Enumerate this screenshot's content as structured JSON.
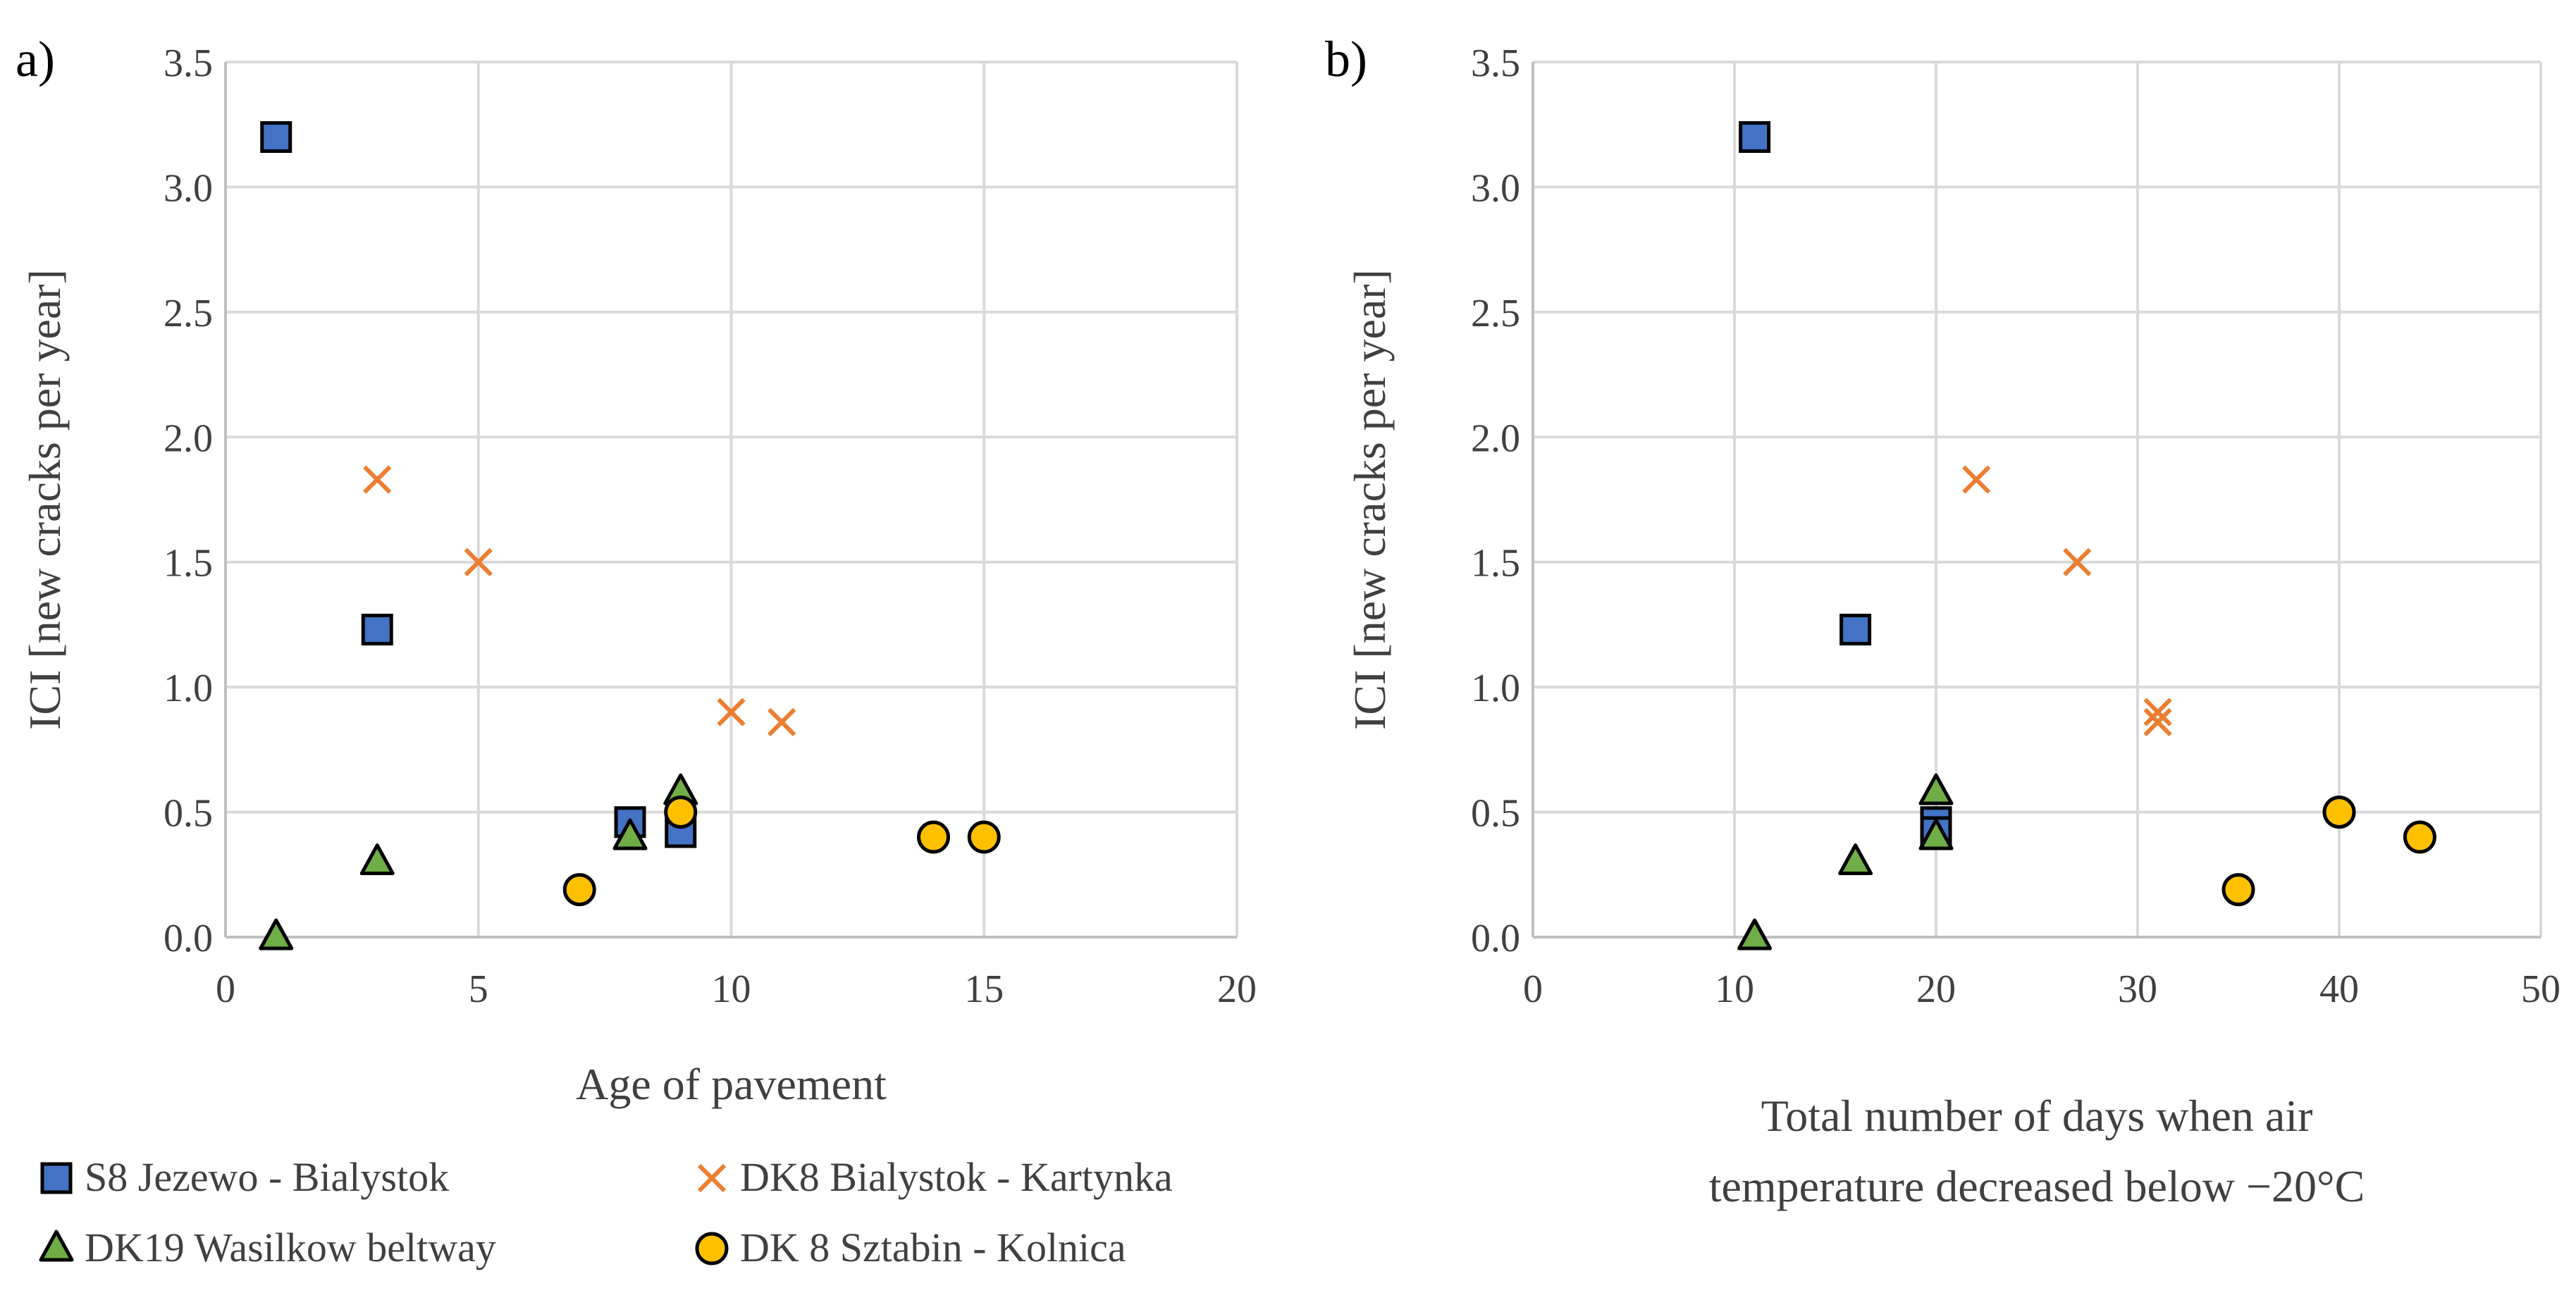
{
  "colors": {
    "s8": "#4472C4",
    "dk8_bk": "#ED7D31",
    "dk19": "#70AD47",
    "dk8_sk": "#FFC000",
    "edge": "#000000",
    "grid": "#d9d9d9"
  },
  "legend": {
    "items": [
      {
        "key": "s8",
        "label": "S8 Jezewo - Bialystok",
        "marker": "square"
      },
      {
        "key": "dk8_bk",
        "label": "DK8 Bialystok - Kartynka",
        "marker": "x"
      },
      {
        "key": "dk19",
        "label": "DK19 Wasilkow beltway",
        "marker": "triangle"
      },
      {
        "key": "dk8_sk",
        "label": "DK 8 Sztabin - Kolnica",
        "marker": "circle"
      }
    ]
  },
  "chart_data": [
    {
      "type": "scatter",
      "panel_label": "a)",
      "title": "",
      "xlabel": "Age of pavement",
      "ylabel": "ICI [new cracks per year]",
      "xlim": [
        0,
        20
      ],
      "ylim": [
        0,
        3.5
      ],
      "xticks": [
        "0",
        "5",
        "10",
        "15",
        "20"
      ],
      "yticks": [
        "0.0",
        "0.5",
        "1.0",
        "1.5",
        "2.0",
        "2.5",
        "3.0",
        "3.5"
      ],
      "grid": true,
      "series": [
        {
          "key": "s8",
          "name": "S8 Jezewo - Bialystok",
          "marker": "square",
          "points": [
            [
              1,
              3.2
            ],
            [
              3,
              1.23
            ],
            [
              8,
              0.46
            ],
            [
              9,
              0.42
            ]
          ]
        },
        {
          "key": "dk8_bk",
          "name": "DK8 Bialystok - Kartynka",
          "marker": "x",
          "points": [
            [
              3,
              1.83
            ],
            [
              5,
              1.5
            ],
            [
              10,
              0.9
            ],
            [
              11,
              0.86
            ]
          ]
        },
        {
          "key": "dk19",
          "name": "DK19 Wasilkow beltway",
          "marker": "triangle",
          "points": [
            [
              1,
              0.0
            ],
            [
              3,
              0.3
            ],
            [
              8,
              0.4
            ],
            [
              9,
              0.58
            ]
          ]
        },
        {
          "key": "dk8_sk",
          "name": "DK 8 Sztabin - Kolnica",
          "marker": "circle",
          "points": [
            [
              7,
              0.19
            ],
            [
              9,
              0.5
            ],
            [
              14,
              0.4
            ],
            [
              15,
              0.4
            ]
          ]
        }
      ]
    },
    {
      "type": "scatter",
      "panel_label": "b)",
      "title": "",
      "xlabel": [
        "Total number of days when air",
        "temperature decreased below −20°C"
      ],
      "ylabel": "ICI [new cracks per year]",
      "xlim": [
        0,
        50
      ],
      "ylim": [
        0,
        3.5
      ],
      "xticks": [
        "0",
        "10",
        "20",
        "30",
        "40",
        "50"
      ],
      "yticks": [
        "0.0",
        "0.5",
        "1.0",
        "1.5",
        "2.0",
        "2.5",
        "3.0",
        "3.5"
      ],
      "grid": true,
      "series": [
        {
          "key": "s8",
          "name": "S8 Jezewo - Bialystok",
          "marker": "square",
          "points": [
            [
              11,
              3.2
            ],
            [
              16,
              1.23
            ],
            [
              20,
              0.46
            ],
            [
              20,
              0.42
            ]
          ]
        },
        {
          "key": "dk8_bk",
          "name": "DK8 Bialystok - Kartynka",
          "marker": "x",
          "points": [
            [
              22,
              1.83
            ],
            [
              27,
              1.5
            ],
            [
              31,
              0.9
            ],
            [
              31,
              0.86
            ]
          ]
        },
        {
          "key": "dk19",
          "name": "DK19 Wasilkow beltway",
          "marker": "triangle",
          "points": [
            [
              11,
              0.0
            ],
            [
              16,
              0.3
            ],
            [
              20,
              0.4
            ],
            [
              20,
              0.58
            ]
          ]
        },
        {
          "key": "dk8_sk",
          "name": "DK 8 Sztabin - Kolnica",
          "marker": "circle",
          "points": [
            [
              35,
              0.19
            ],
            [
              40,
              0.5
            ],
            [
              44,
              0.4
            ]
          ]
        }
      ]
    }
  ]
}
